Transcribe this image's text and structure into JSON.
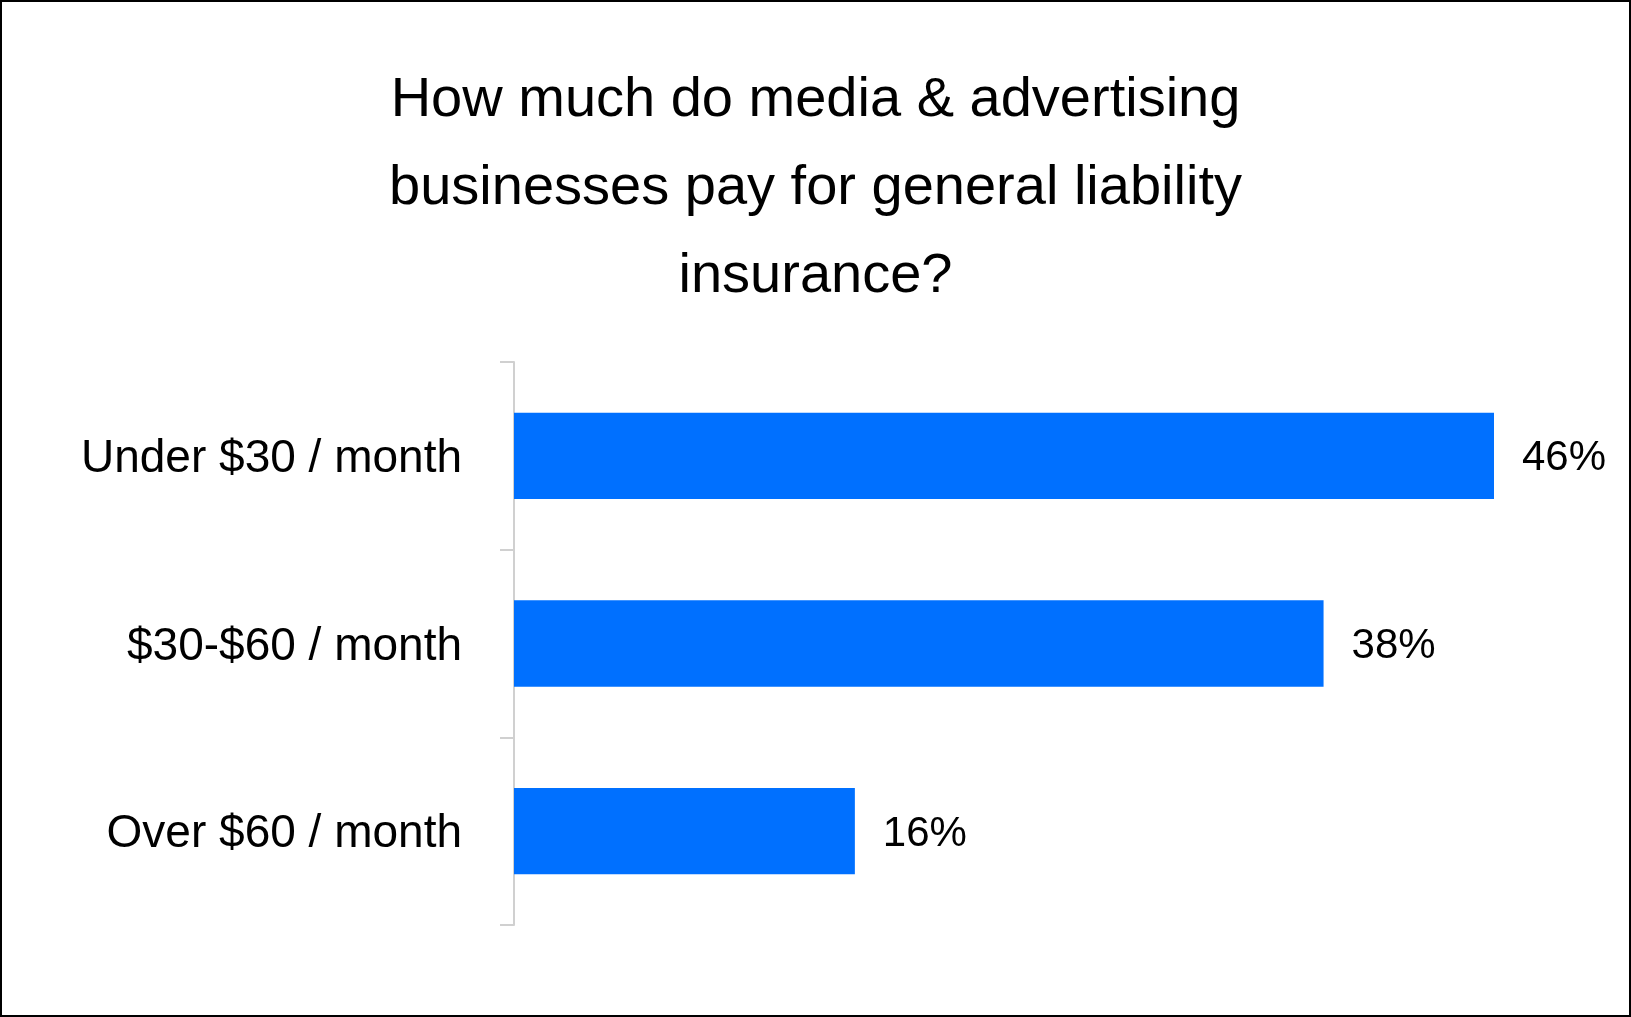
{
  "chart_data": {
    "type": "bar",
    "title": "How much do media & advertising\nbusinesses pay for general liability\ninsurance?",
    "orientation": "horizontal",
    "categories": [
      "Under $30 / month",
      "$30-$60 / month",
      "Over $60 / month"
    ],
    "values": [
      46,
      38,
      16
    ],
    "color": "#0070ff",
    "value_labels": [
      "46%",
      "38%",
      "16%"
    ]
  }
}
